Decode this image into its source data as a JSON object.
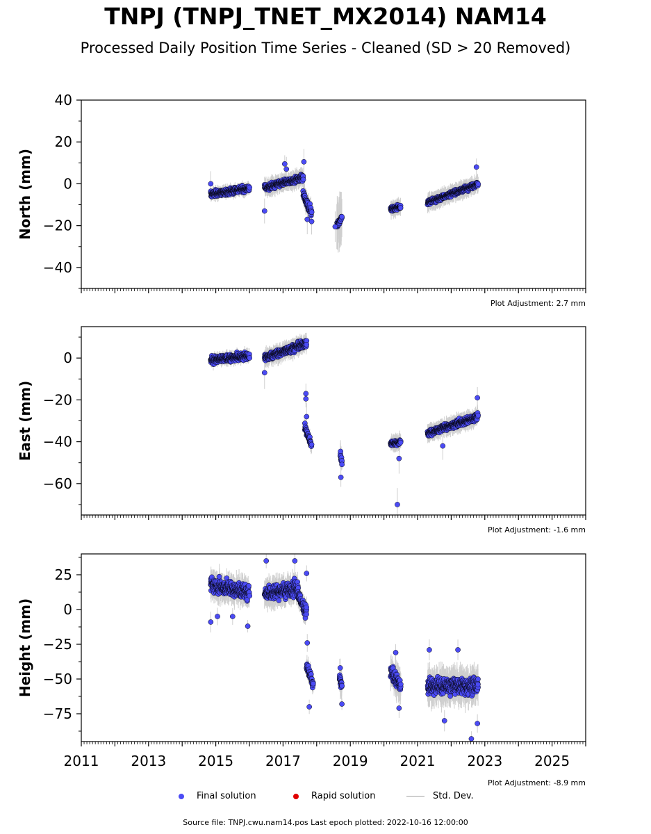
{
  "title": "TNPJ (TNPJ_TNET_MX2014) NAM14",
  "subtitle": "Processed Daily Position Time Series - Cleaned (SD > 20 Removed)",
  "legend": {
    "final": "Final solution",
    "rapid": "Rapid solution",
    "stddev": "Std. Dev."
  },
  "footer": "Source file: TNPJ.cwu.nam14.pos  Last epoch plotted: 2022-10-16 12:00:00",
  "colors": {
    "final": "#4b4bf5",
    "rapid": "#e00000",
    "stddev": "#cfcfcf",
    "outline": "#000000"
  },
  "chart_data": [
    {
      "type": "scatter",
      "ylabel": "North (mm)",
      "xlim": [
        2011,
        2026
      ],
      "ylim": [
        -50,
        40
      ],
      "yticks": [
        -40,
        -20,
        0,
        20,
        40
      ],
      "xticks": [
        2011,
        2013,
        2015,
        2017,
        2019,
        2021,
        2023,
        2025
      ],
      "show_xtick_labels": false,
      "adjustment": "Plot Adjustment: 2.7 mm",
      "segments": [
        {
          "x": [
            2014.85,
            2016.0
          ],
          "y": [
            -5,
            -2
          ],
          "spread": 2.5,
          "sd": 2
        },
        {
          "x": [
            2016.45,
            2017.6
          ],
          "y": [
            -2,
            3
          ],
          "spread": 2.5,
          "sd": 3
        },
        {
          "x": [
            2017.6,
            2017.85
          ],
          "y": [
            -5,
            -14
          ],
          "spread": 3,
          "sd": 4
        },
        {
          "x": [
            2018.6,
            2018.75
          ],
          "y": [
            -20,
            -16
          ],
          "spread": 2,
          "sd": 9
        },
        {
          "x": [
            2020.2,
            2020.5
          ],
          "y": [
            -12,
            -11
          ],
          "spread": 2,
          "sd": 3
        },
        {
          "x": [
            2021.3,
            2022.8
          ],
          "y": [
            -9,
            0
          ],
          "spread": 2,
          "sd": 3
        }
      ],
      "extra_points": [
        [
          2016.45,
          -13
        ],
        [
          2017.05,
          9.5
        ],
        [
          2017.1,
          7
        ],
        [
          2017.62,
          10.5
        ],
        [
          2017.72,
          -17
        ],
        [
          2018.55,
          -20.5
        ],
        [
          2022.75,
          8
        ],
        [
          2017.85,
          -18
        ],
        [
          2014.85,
          0
        ]
      ]
    },
    {
      "type": "scatter",
      "ylabel": "East (mm)",
      "xlim": [
        2011,
        2026
      ],
      "ylim": [
        -75,
        15
      ],
      "yticks": [
        -60,
        -40,
        -20,
        0
      ],
      "xticks": [
        2011,
        2013,
        2015,
        2017,
        2019,
        2021,
        2023,
        2025
      ],
      "show_xtick_labels": false,
      "adjustment": "Plot Adjustment: -1.6 mm",
      "segments": [
        {
          "x": [
            2014.85,
            2016.0
          ],
          "y": [
            -1,
            1
          ],
          "spread": 3,
          "sd": 2
        },
        {
          "x": [
            2016.45,
            2017.7
          ],
          "y": [
            0,
            7
          ],
          "spread": 3,
          "sd": 3
        },
        {
          "x": [
            2017.65,
            2017.85
          ],
          "y": [
            -33,
            -42
          ],
          "spread": 3,
          "sd": 3
        },
        {
          "x": [
            2018.7,
            2018.75
          ],
          "y": [
            -45,
            -50
          ],
          "spread": 3,
          "sd": 4
        },
        {
          "x": [
            2020.2,
            2020.5
          ],
          "y": [
            -41,
            -40
          ],
          "spread": 2,
          "sd": 3
        },
        {
          "x": [
            2021.3,
            2022.8
          ],
          "y": [
            -36,
            -28
          ],
          "spread": 2.5,
          "sd": 3
        }
      ],
      "extra_points": [
        [
          2016.45,
          -7
        ],
        [
          2017.68,
          -17
        ],
        [
          2017.68,
          -19.5
        ],
        [
          2017.7,
          -28
        ],
        [
          2018.72,
          -57
        ],
        [
          2020.4,
          -70
        ],
        [
          2020.45,
          -48
        ],
        [
          2022.78,
          -19
        ],
        [
          2021.75,
          -42
        ]
      ]
    },
    {
      "type": "scatter",
      "ylabel": "Height (mm)",
      "xlim": [
        2011,
        2026
      ],
      "ylim": [
        -95,
        40
      ],
      "yticks": [
        -75,
        -50,
        -25,
        0,
        25
      ],
      "xticks": [
        2011,
        2013,
        2015,
        2017,
        2019,
        2021,
        2023,
        2025
      ],
      "show_xtick_labels": true,
      "adjustment": "Plot Adjustment: -8.9 mm",
      "segments": [
        {
          "x": [
            2014.85,
            2016.0
          ],
          "y": [
            18,
            12
          ],
          "spread": 9,
          "sd": 7
        },
        {
          "x": [
            2016.45,
            2017.45
          ],
          "y": [
            12,
            15
          ],
          "spread": 9,
          "sd": 7
        },
        {
          "x": [
            2017.45,
            2017.7
          ],
          "y": [
            10,
            -2
          ],
          "spread": 7,
          "sd": 6
        },
        {
          "x": [
            2017.7,
            2017.9
          ],
          "y": [
            -40,
            -55
          ],
          "spread": 7,
          "sd": 5
        },
        {
          "x": [
            2018.68,
            2018.75
          ],
          "y": [
            -50,
            -55
          ],
          "spread": 6,
          "sd": 8
        },
        {
          "x": [
            2020.2,
            2020.5
          ],
          "y": [
            -45,
            -55
          ],
          "spread": 8,
          "sd": 8
        },
        {
          "x": [
            2021.3,
            2022.8
          ],
          "y": [
            -55,
            -55
          ],
          "spread": 10,
          "sd": 9
        }
      ],
      "extra_points": [
        [
          2014.85,
          -9
        ],
        [
          2015.05,
          -5
        ],
        [
          2015.5,
          -5
        ],
        [
          2015.95,
          -12
        ],
        [
          2016.5,
          35
        ],
        [
          2017.35,
          35
        ],
        [
          2017.7,
          26
        ],
        [
          2017.72,
          -24
        ],
        [
          2017.78,
          -70
        ],
        [
          2018.7,
          -42
        ],
        [
          2018.75,
          -68
        ],
        [
          2020.35,
          -31
        ],
        [
          2020.45,
          -71
        ],
        [
          2021.35,
          -29
        ],
        [
          2021.8,
          -80
        ],
        [
          2022.2,
          -29
        ],
        [
          2022.6,
          -93
        ],
        [
          2022.78,
          -82
        ]
      ]
    }
  ]
}
